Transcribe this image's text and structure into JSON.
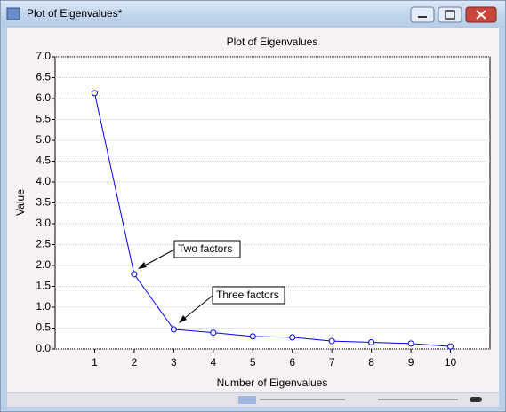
{
  "window_title": "Plot of Eigenvalues*",
  "chart_data": {
    "type": "line",
    "title": "Plot of Eigenvalues",
    "x_label": "Number of Eigenvalues",
    "y_label": "Value",
    "x": [
      1,
      2,
      3,
      4,
      5,
      6,
      7,
      8,
      9,
      10
    ],
    "values": [
      6.13,
      1.79,
      0.47,
      0.39,
      0.3,
      0.28,
      0.19,
      0.16,
      0.13,
      0.06
    ],
    "color": "#0000ff",
    "xlim": [
      0,
      11
    ],
    "xticks": [
      1,
      2,
      3,
      4,
      5,
      6,
      7,
      8,
      9,
      10
    ],
    "ylim": [
      0,
      7
    ],
    "yticks": [
      {
        "value": 0,
        "label": "0.0"
      },
      {
        "value": 0.5,
        "label": "0.5"
      },
      {
        "value": 1,
        "label": "1.0"
      },
      {
        "value": 1.5,
        "label": "1.5"
      },
      {
        "value": 2,
        "label": "2.0"
      },
      {
        "value": 2.5,
        "label": "2.5"
      },
      {
        "value": 3,
        "label": "3.0"
      },
      {
        "value": 3.5,
        "label": "3.5"
      },
      {
        "value": 4,
        "label": "4.0"
      },
      {
        "value": 4.5,
        "label": "4.5"
      },
      {
        "value": 5,
        "label": "5.0"
      },
      {
        "value": 5.5,
        "label": "5.5"
      },
      {
        "value": 6,
        "label": "6.0"
      },
      {
        "value": 6.5,
        "label": "6.5"
      },
      {
        "value": 7,
        "label": "7.0"
      }
    ],
    "grid": true,
    "annotations": [
      "Two factors",
      "Three factors"
    ]
  }
}
